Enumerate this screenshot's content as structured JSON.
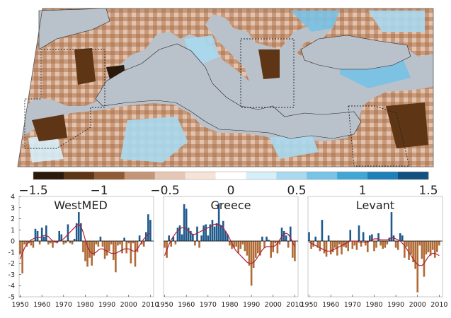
{
  "colors": {
    "sea": "#b9c2ca",
    "positive_bar": "#1f5a8c",
    "negative_bar": "#b06a35",
    "smooth_line": "#b01e3c",
    "colorbar": [
      "#2b1a0c",
      "#5e3515",
      "#8f5a34",
      "#c49577",
      "#e6c6b4",
      "#f5e3d8",
      "#ffffff",
      "#d6eef8",
      "#a9d9ef",
      "#78c3e6",
      "#3fa6d6",
      "#1f7fb8",
      "#12507f"
    ]
  },
  "map": {
    "region_boxes": [
      "WestMED",
      "Greece",
      "Levant"
    ]
  },
  "colorbar": {
    "tick_labels": [
      "−1.5",
      "−1",
      "−0.5",
      "0",
      "0.5",
      "1",
      "1.5"
    ],
    "values": [
      -1.5,
      -1,
      -0.5,
      0,
      0.5,
      1,
      1.5
    ],
    "range": [
      -1.5,
      1.5
    ]
  },
  "chart_data": [
    {
      "type": "bar",
      "title": "WestMED",
      "x": [
        1950,
        1951,
        1952,
        1953,
        1954,
        1955,
        1956,
        1957,
        1958,
        1959,
        1960,
        1961,
        1962,
        1963,
        1964,
        1965,
        1966,
        1967,
        1968,
        1969,
        1970,
        1971,
        1972,
        1973,
        1974,
        1975,
        1976,
        1977,
        1978,
        1979,
        1980,
        1981,
        1982,
        1983,
        1984,
        1985,
        1986,
        1987,
        1988,
        1989,
        1990,
        1991,
        1992,
        1993,
        1994,
        1995,
        1996,
        1997,
        1998,
        1999,
        2000,
        2001,
        2002,
        2003,
        2004,
        2005,
        2006,
        2007,
        2008,
        2009,
        2010
      ],
      "values": [
        -1.2,
        -2.9,
        -0.3,
        -0.5,
        -0.2,
        -0.4,
        -0.6,
        1.1,
        0.9,
        -0.3,
        1.2,
        0.4,
        1.4,
        -0.3,
        -0.2,
        -0.6,
        -0.1,
        -0.2,
        0.9,
        0.6,
        -0.3,
        -0.2,
        1.5,
        -0.2,
        -0.3,
        0.2,
        1.6,
        2.6,
        1.6,
        -1.0,
        -1.8,
        -2.3,
        -1.5,
        -2.2,
        -1.3,
        -0.3,
        -0.5,
        0.4,
        -0.5,
        -1.6,
        -1.3,
        -0.9,
        -0.3,
        -1.7,
        -2.8,
        -0.4,
        -0.3,
        -1.1,
        0.3,
        -1.1,
        -0.2,
        -2.0,
        -0.2,
        -2.3,
        -1.0,
        0.5,
        -0.3,
        -0.5,
        0.8,
        2.4,
        1.9
      ],
      "smooth": [
        -1.6,
        -1.1,
        -0.6,
        -0.3,
        -0.1,
        0.1,
        0.2,
        0.3,
        0.3,
        0.3,
        0.4,
        0.5,
        0.5,
        0.4,
        0.2,
        0.0,
        -0.1,
        -0.1,
        0.0,
        0.1,
        0.2,
        0.4,
        0.6,
        0.8,
        1.0,
        1.2,
        1.4,
        1.5,
        1.3,
        0.8,
        0.1,
        -0.5,
        -0.9,
        -1.1,
        -1.1,
        -1.0,
        -0.8,
        -0.7,
        -0.7,
        -0.8,
        -0.9,
        -1.0,
        -1.1,
        -1.1,
        -1.1,
        -1.0,
        -0.9,
        -0.8,
        -0.7,
        -0.7,
        -0.7,
        -0.8,
        -0.9,
        -0.9,
        -0.7,
        -0.4,
        -0.1,
        0.2,
        0.4,
        0.6,
        0.7
      ],
      "xticks": [
        1950,
        1960,
        1970,
        1980,
        1990,
        2000,
        2010
      ],
      "xlim": [
        1949.5,
        2011.5
      ],
      "ylim": [
        -5,
        4
      ],
      "yticks": [
        -5,
        -4,
        -3,
        -2,
        -1,
        0,
        1,
        2,
        3,
        4
      ]
    },
    {
      "type": "bar",
      "title": "Greece",
      "x": [
        1950,
        1951,
        1952,
        1953,
        1954,
        1955,
        1956,
        1957,
        1958,
        1959,
        1960,
        1961,
        1962,
        1963,
        1964,
        1965,
        1966,
        1967,
        1968,
        1969,
        1970,
        1971,
        1972,
        1973,
        1974,
        1975,
        1976,
        1977,
        1978,
        1979,
        1980,
        1981,
        1982,
        1983,
        1984,
        1985,
        1986,
        1987,
        1988,
        1989,
        1990,
        1991,
        1992,
        1993,
        1994,
        1995,
        1996,
        1997,
        1998,
        1999,
        2000,
        2001,
        2002,
        2003,
        2004,
        2005,
        2006,
        2007,
        2008,
        2009,
        2010
      ],
      "values": [
        -0.6,
        -1.5,
        0.5,
        -0.5,
        0.4,
        -0.3,
        1.2,
        1.4,
        0.6,
        3.3,
        2.9,
        1.2,
        0.9,
        0.6,
        -0.4,
        1.3,
        -0.6,
        0.5,
        1.4,
        1.5,
        0.5,
        1.5,
        1.9,
        1.3,
        1.6,
        3.4,
        1.4,
        1.8,
        0.9,
        0.6,
        -0.4,
        -0.7,
        -0.6,
        -0.5,
        -1.1,
        -0.7,
        -0.3,
        -0.9,
        -1.3,
        -2.2,
        -4.0,
        -2.4,
        -1.5,
        -1.1,
        -1.3,
        0.4,
        -0.6,
        0.4,
        0.1,
        -1.5,
        -1.0,
        -0.2,
        -1.1,
        -0.3,
        1.2,
        0.9,
        0.5,
        -0.6,
        1.3,
        -1.5,
        -1.8
      ],
      "smooth": [
        -1.3,
        -0.8,
        -0.3,
        0.1,
        0.4,
        0.7,
        0.9,
        1.1,
        1.2,
        1.2,
        1.1,
        0.9,
        0.7,
        0.6,
        0.6,
        0.7,
        0.8,
        0.9,
        1.0,
        1.1,
        1.2,
        1.3,
        1.4,
        1.5,
        1.5,
        1.5,
        1.4,
        1.2,
        0.9,
        0.6,
        0.2,
        -0.2,
        -0.6,
        -0.9,
        -1.1,
        -1.3,
        -1.5,
        -1.7,
        -1.9,
        -2.0,
        -2.0,
        -1.9,
        -1.7,
        -1.4,
        -1.1,
        -0.8,
        -0.6,
        -0.5,
        -0.5,
        -0.5,
        -0.5,
        -0.4,
        -0.2,
        0.1,
        0.4,
        0.6,
        0.7,
        0.6,
        0.3,
        -0.1,
        -0.5
      ],
      "xticks": [
        1950,
        1960,
        1970,
        1980,
        1990,
        2000,
        2010
      ],
      "xlim": [
        1949.5,
        2011.5
      ],
      "ylim": [
        -5,
        4
      ],
      "yticks": [
        -5,
        -4,
        -3,
        -2,
        -1,
        0,
        1,
        2,
        3,
        4
      ]
    },
    {
      "type": "bar",
      "title": "Levant",
      "x": [
        1950,
        1951,
        1952,
        1953,
        1954,
        1955,
        1956,
        1957,
        1958,
        1959,
        1960,
        1961,
        1962,
        1963,
        1964,
        1965,
        1966,
        1967,
        1968,
        1969,
        1970,
        1971,
        1972,
        1973,
        1974,
        1975,
        1976,
        1977,
        1978,
        1979,
        1980,
        1981,
        1982,
        1983,
        1984,
        1985,
        1986,
        1987,
        1988,
        1989,
        1990,
        1991,
        1992,
        1993,
        1994,
        1995,
        1996,
        1997,
        1998,
        1999,
        2000,
        2001,
        2002,
        2003,
        2004,
        2005,
        2006,
        2007,
        2008,
        2009,
        2010
      ],
      "values": [
        0.8,
        -0.7,
        -0.5,
        0.4,
        -0.6,
        -0.9,
        1.9,
        -1.1,
        -1.4,
        0.5,
        -1.2,
        -1.0,
        -0.6,
        -1.3,
        -0.3,
        -1.2,
        -0.5,
        -0.6,
        -0.9,
        1.0,
        -0.7,
        -0.4,
        -0.8,
        1.4,
        -0.5,
        0.8,
        -0.4,
        -1.0,
        0.5,
        0.6,
        -0.9,
        -0.6,
        0.7,
        -0.4,
        -0.7,
        -0.6,
        -0.3,
        0.3,
        2.6,
        0.5,
        -0.6,
        -0.8,
        0.7,
        0.5,
        -1.5,
        -0.5,
        -1.7,
        -1.2,
        -1.9,
        -2.5,
        -4.6,
        -0.4,
        -1.6,
        -3.2,
        -1.2,
        -1.0,
        -1.3,
        -0.8,
        -1.5,
        -1.0,
        -0.4
      ],
      "smooth": [
        -0.1,
        -0.2,
        -0.3,
        -0.4,
        -0.5,
        -0.6,
        -0.7,
        -0.8,
        -0.9,
        -0.9,
        -0.9,
        -0.8,
        -0.7,
        -0.6,
        -0.5,
        -0.4,
        -0.3,
        -0.2,
        -0.1,
        0.0,
        0.0,
        0.0,
        0.0,
        -0.1,
        -0.1,
        -0.1,
        -0.1,
        -0.1,
        0.0,
        0.1,
        0.2,
        0.2,
        0.2,
        0.1,
        0.1,
        0.1,
        0.1,
        0.2,
        0.3,
        0.3,
        0.2,
        0.1,
        0.0,
        -0.2,
        -0.4,
        -0.7,
        -1.0,
        -1.3,
        -1.6,
        -1.9,
        -2.1,
        -2.2,
        -2.2,
        -2.0,
        -1.7,
        -1.4,
        -1.2,
        -1.1,
        -1.1,
        -1.2,
        -1.3
      ],
      "xticks": [
        1950,
        1960,
        1970,
        1980,
        1990,
        2000,
        2010
      ],
      "xlim": [
        1949.5,
        2011.5
      ],
      "ylim": [
        -5,
        4
      ],
      "yticks": [
        -5,
        -4,
        -3,
        -2,
        -1,
        0,
        1,
        2,
        3,
        4
      ]
    }
  ]
}
